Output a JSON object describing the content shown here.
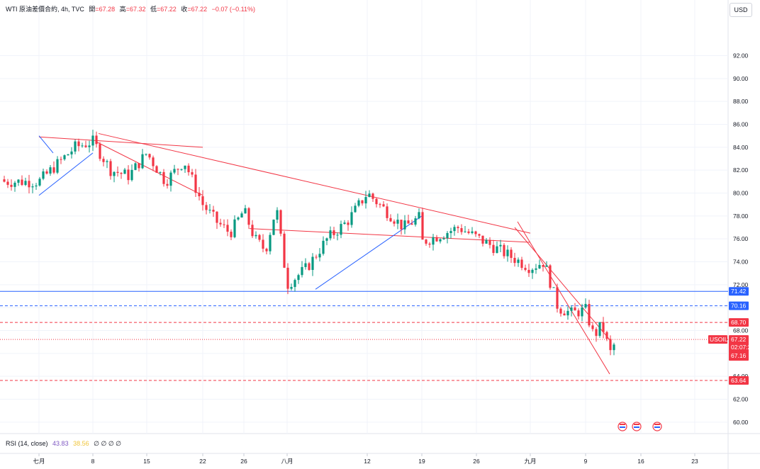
{
  "header": {
    "symbol": "WTI 原油差價合約, 4h, TVC",
    "open_label": "開",
    "open": "=67.28",
    "high_label": "高",
    "high": "=67.32",
    "low_label": "低",
    "low": "=67.22",
    "close_label": "收",
    "close": "=67.22",
    "change": "−0.07 (−0.11%)"
  },
  "currency_button": "USD",
  "rsi": {
    "label": "RSI (14, close)",
    "value1": "43.83",
    "value2": "38.56",
    "rest": "∅ ∅ ∅ ∅"
  },
  "colors": {
    "up": "#089981",
    "down": "#f23645",
    "trend_red": "#f23645",
    "trend_blue": "#2962ff",
    "price_label_red": "#f23645",
    "price_label_blue": "#2962ff"
  },
  "chart_data": {
    "type": "candlestick",
    "timeframe": "4h",
    "y_range": [
      59,
      95
    ],
    "y_ticks": [
      60,
      62,
      64,
      66,
      68,
      70,
      72,
      74,
      76,
      78,
      80,
      82,
      84,
      86,
      88,
      90,
      92
    ],
    "y_tick_labels": [
      "60.00",
      "62.00",
      "64.00",
      "66.00",
      "68.00",
      "70.00",
      "72.00",
      "74.00",
      "76.00",
      "78.00",
      "80.00",
      "82.00",
      "84.00",
      "86.00",
      "88.00",
      "90.00",
      "92.00"
    ],
    "x_tick_labels": [
      "七月",
      "8",
      "15",
      "22",
      "26",
      "八月",
      "12",
      "19",
      "26",
      "九月",
      "9",
      "16",
      "23"
    ],
    "close_path": [
      [
        "七月",
        81.0
      ],
      [
        "",
        82.5
      ],
      [
        "",
        84.0
      ],
      [
        "8",
        84.5
      ],
      [
        "",
        82.0
      ],
      [
        "",
        81.5
      ],
      [
        "15",
        83.5
      ],
      [
        "",
        81.0
      ],
      [
        "",
        82.8
      ],
      [
        "22",
        79.0
      ],
      [
        "",
        77.5
      ],
      [
        "",
        76.5
      ],
      [
        "26",
        78.5
      ],
      [
        "",
        76.0
      ],
      [
        "",
        75.0
      ],
      [
        "",
        78.8
      ],
      [
        "八月",
        72.0
      ],
      [
        "",
        73.5
      ],
      [
        "",
        76.0
      ],
      [
        "",
        77.5
      ],
      [
        "12",
        80.0
      ],
      [
        "",
        78.5
      ],
      [
        "",
        77.0
      ],
      [
        "19",
        78.0
      ],
      [
        "",
        75.0
      ],
      [
        "",
        72.5
      ],
      [
        "",
        74.0
      ],
      [
        "",
        72.0
      ],
      [
        "26",
        75.5
      ],
      [
        "",
        77.5
      ],
      [
        "",
        74.5
      ],
      [
        "",
        77.0
      ],
      [
        "九月",
        73.5
      ],
      [
        "",
        74.0
      ],
      [
        "",
        70.0
      ],
      [
        "",
        69.5
      ],
      [
        "9",
        69.8
      ],
      [
        "",
        67.5
      ],
      [
        "",
        68.5
      ],
      [
        "",
        66.0
      ],
      [
        "",
        67.22
      ]
    ],
    "horizontal_lines": [
      {
        "price": 71.42,
        "label": "71.42",
        "style": "solid",
        "color": "blue"
      },
      {
        "price": 70.16,
        "label": "70.16",
        "style": "dashed",
        "color": "blue"
      },
      {
        "price": 68.7,
        "label": "68.70",
        "style": "dashed",
        "color": "red"
      },
      {
        "price": 67.22,
        "label": "67.22",
        "style": "dotted",
        "color": "red"
      },
      {
        "price": 63.64,
        "label": "63.64",
        "style": "dashed",
        "color": "red"
      }
    ],
    "current_price_label": {
      "symbol": "USOIL",
      "price": "67.22",
      "countdown": "02:07:29",
      "low": "67.16"
    },
    "trendlines": [
      {
        "color": "red",
        "from": [
          "七月",
          84.9
        ],
        "to": [
          "22",
          84.0
        ]
      },
      {
        "color": "red",
        "from": [
          "8",
          85.2
        ],
        "to": [
          "九月",
          76.5
        ]
      },
      {
        "color": "red",
        "from": [
          "8",
          84.5
        ],
        "to": [
          "22",
          79.8
        ]
      },
      {
        "color": "red",
        "from": [
          "九月",
          77.5
        ],
        "to": [
          "9",
          64.2
        ]
      },
      {
        "color": "red",
        "from": [
          "九月",
          77.0
        ],
        "to": [
          "9",
          67.2
        ]
      },
      {
        "color": "red",
        "from": [
          "26",
          76.9
        ],
        "to": [
          "九月",
          75.7
        ]
      },
      {
        "color": "blue",
        "from": [
          "七月",
          79.8
        ],
        "to": [
          "8",
          83.5
        ]
      },
      {
        "color": "blue",
        "from": [
          "七月",
          83.5
        ],
        "to": [
          "七月",
          85.0
        ]
      },
      {
        "color": "blue",
        "from": [
          "八月",
          71.6
        ],
        "to": [
          "19",
          78.0
        ]
      }
    ]
  }
}
